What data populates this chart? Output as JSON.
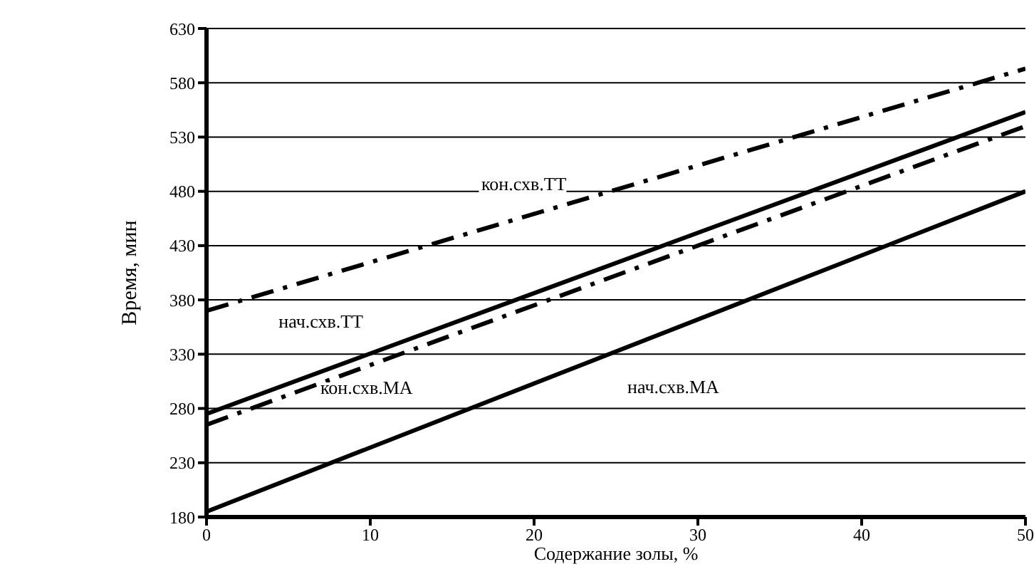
{
  "chart_data": {
    "type": "line",
    "xlabel": "Содержание золы, %",
    "ylabel": "Время, мин",
    "x": [
      0,
      50
    ],
    "series": [
      {
        "name": "кон.схв.ТТ",
        "color": "#000000",
        "line_style": "dashed",
        "values": [
          370,
          593
        ]
      },
      {
        "name": "нач.схв.ТТ",
        "color": "#000000",
        "line_style": "solid",
        "values": [
          275,
          553
        ]
      },
      {
        "name": "кон.схв.МА",
        "color": "#000000",
        "line_style": "dashed",
        "values": [
          265,
          540
        ]
      },
      {
        "name": "нач.схв.МА",
        "color": "#000000",
        "line_style": "solid",
        "values": [
          185,
          480
        ]
      }
    ],
    "xlim": [
      0,
      50
    ],
    "xticks": [
      0,
      10,
      20,
      30,
      40,
      50
    ],
    "ylim": [
      180,
      630
    ],
    "yticks": [
      180,
      230,
      280,
      330,
      380,
      430,
      480,
      530,
      580,
      630
    ],
    "grid": "y",
    "legend": false,
    "marker": "none"
  }
}
